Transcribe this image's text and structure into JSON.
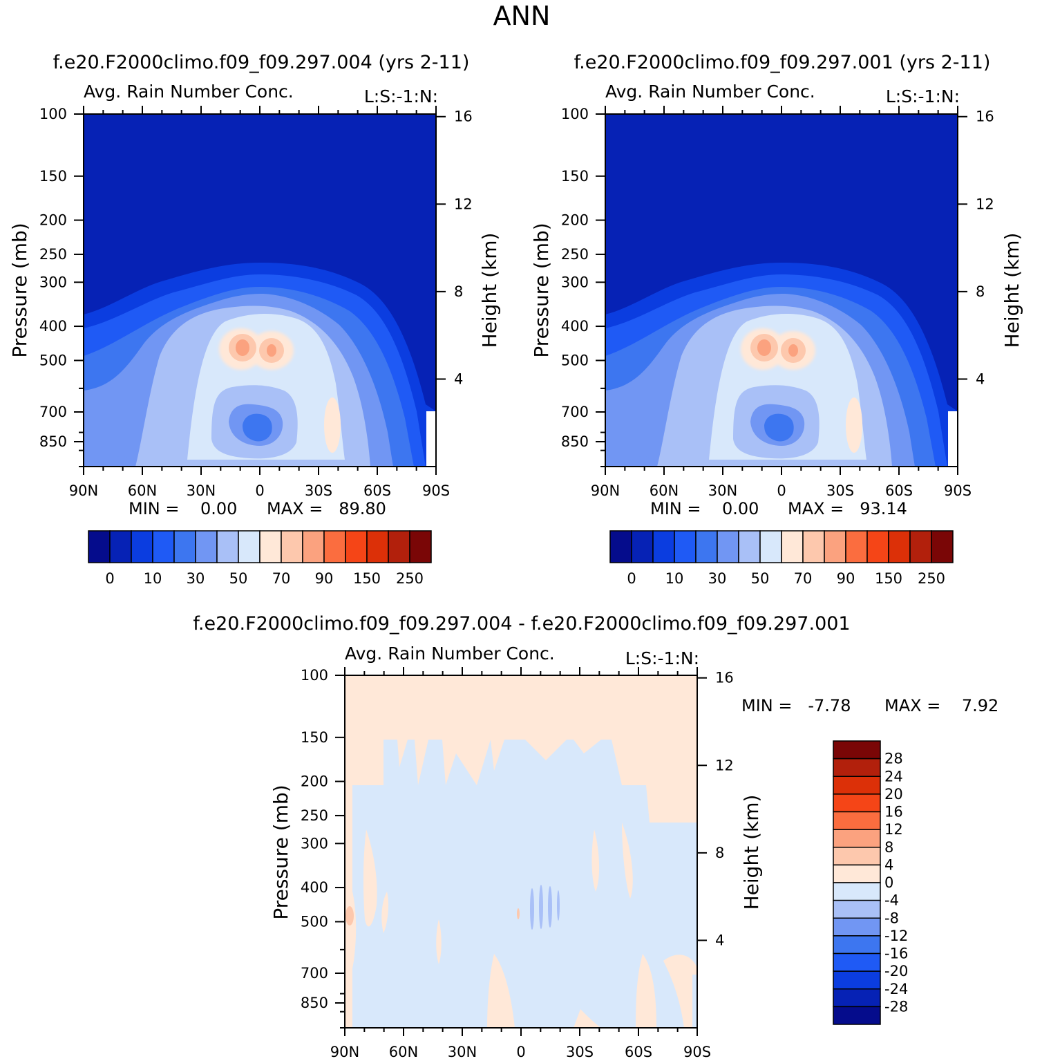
{
  "season": "ANN",
  "panels": [
    {
      "case": "f.e20.F2000climo.f09_f09.297.004 (yrs 2-11)",
      "title": "Avg. Rain Number Conc.",
      "units": "L:S:-1:N:",
      "min_text": "MIN =    0.00",
      "max_text": "MAX =   89.80",
      "colorbar_labels": [
        "0",
        "10",
        "30",
        "50",
        "70",
        "90",
        "150",
        "250"
      ]
    },
    {
      "case": "f.e20.F2000climo.f09_f09.297.001 (yrs 2-11)",
      "title": "Avg. Rain Number Conc.",
      "units": "L:S:-1:N:",
      "min_text": "MIN =    0.00",
      "max_text": "MAX =   93.14",
      "colorbar_labels": [
        "0",
        "10",
        "30",
        "50",
        "70",
        "90",
        "150",
        "250"
      ]
    },
    {
      "case": "f.e20.F2000climo.f09_f09.297.004 - f.e20.F2000climo.f09_f09.297.001",
      "title": "Avg. Rain Number Conc.",
      "units": "L:S:-1:N:",
      "min_text": "MIN =   -7.78",
      "max_text": "MAX =    7.92",
      "colorbar_labels": [
        "28",
        "24",
        "20",
        "16",
        "12",
        "8",
        "4",
        "0",
        "-4",
        "-8",
        "-12",
        "-16",
        "-20",
        "-24",
        "-28"
      ]
    }
  ],
  "chart_data": [
    {
      "type": "heatmap",
      "title": "Avg. Rain Number Conc.",
      "ylabel": "Pressure (mb)",
      "y2label": "Height (km)",
      "x": [
        "90N",
        "60N",
        "30N",
        "0",
        "30S",
        "60S",
        "90S"
      ],
      "xlim": [
        90,
        -90
      ],
      "y_ticks": [
        100,
        150,
        200,
        250,
        300,
        400,
        500,
        700,
        850
      ],
      "ylim": [
        100,
        1000
      ],
      "y_scale": "log",
      "y2_ticks": [
        16,
        12,
        8,
        4
      ],
      "min": 0.0,
      "max": 89.8,
      "levels": [
        0,
        5,
        10,
        20,
        30,
        40,
        50,
        60,
        70,
        80,
        90,
        100,
        150,
        200,
        250
      ],
      "features": [
        {
          "name": "upper troposphere",
          "value": 0
        },
        {
          "name": "twin maximum near 5S and 5N at 450mb",
          "value": 90
        }
      ]
    },
    {
      "type": "heatmap",
      "title": "Avg. Rain Number Conc.",
      "ylabel": "Pressure (mb)",
      "y2label": "Height (km)",
      "x": [
        "90N",
        "60N",
        "30N",
        "0",
        "30S",
        "60S",
        "90S"
      ],
      "xlim": [
        90,
        -90
      ],
      "y_ticks": [
        100,
        150,
        200,
        250,
        300,
        400,
        500,
        700,
        850
      ],
      "ylim": [
        100,
        1000
      ],
      "y_scale": "log",
      "y2_ticks": [
        16,
        12,
        8,
        4
      ],
      "min": 0.0,
      "max": 93.14,
      "levels": [
        0,
        5,
        10,
        20,
        30,
        40,
        50,
        60,
        70,
        80,
        90,
        100,
        150,
        200,
        250
      ],
      "features": [
        {
          "name": "upper troposphere",
          "value": 0
        },
        {
          "name": "twin maximum near 5S and 5N at 450mb",
          "value": 93
        }
      ]
    },
    {
      "type": "heatmap",
      "title": "Avg. Rain Number Conc.",
      "ylabel": "Pressure (mb)",
      "y2label": "Height (km)",
      "x": [
        "90N",
        "60N",
        "30N",
        "0",
        "30S",
        "60S",
        "90S"
      ],
      "xlim": [
        90,
        -90
      ],
      "y_ticks": [
        100,
        150,
        200,
        250,
        300,
        400,
        500,
        700,
        850
      ],
      "ylim": [
        100,
        1000
      ],
      "y_scale": "log",
      "y2_ticks": [
        16,
        12,
        8,
        4
      ],
      "min": -7.78,
      "max": 7.92,
      "levels": [
        -28,
        -24,
        -20,
        -16,
        -12,
        -8,
        -4,
        0,
        4,
        8,
        12,
        16,
        20,
        24,
        28
      ]
    }
  ],
  "colors": {
    "abs": [
      "#050c8c",
      "#0622b5",
      "#0b3de0",
      "#1f5af5",
      "#3d76f0",
      "#7196f3",
      "#a9c0f7",
      "#d8e8fb",
      "#ffe8d8",
      "#fdc8ad",
      "#fba27f",
      "#fb6d3f",
      "#f54517",
      "#dc3008",
      "#b2200c",
      "#7a0606"
    ],
    "diff": [
      "#050c8c",
      "#0622b5",
      "#0b3de0",
      "#1f5af5",
      "#3d76f0",
      "#7196f3",
      "#a9c0f7",
      "#d8e8fb",
      "#ffe8d8",
      "#fdc8ad",
      "#fba27f",
      "#fb6d3f",
      "#f54517",
      "#dc3008",
      "#b2200c",
      "#7a0606"
    ]
  }
}
